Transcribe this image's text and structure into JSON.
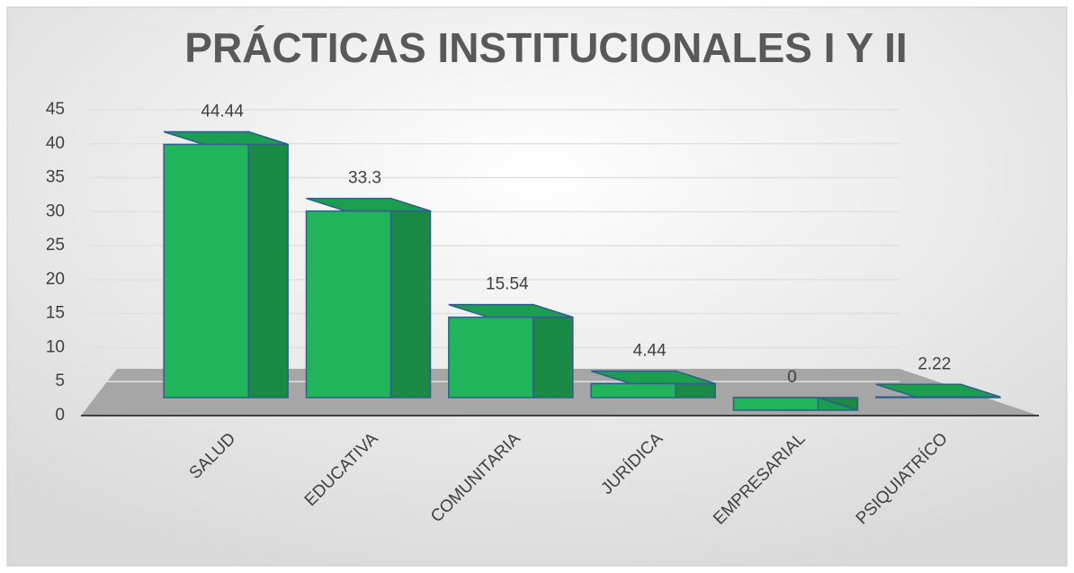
{
  "chart_data": {
    "type": "bar",
    "title": "PRÁCTICAS INSTITUCIONALES I Y II",
    "categories": [
      "SALUD",
      "EDUCATIVA",
      "COMUNITARIA",
      "JURÍDICA",
      "EMPRESARIAL",
      "PSIQUIATRÍCO"
    ],
    "values": [
      44.44,
      33.3,
      15.54,
      4.44,
      0,
      2.22
    ],
    "color": "#21b45a",
    "ylim": [
      0,
      45
    ],
    "yticks": [
      0,
      5,
      10,
      15,
      20,
      25,
      30,
      35,
      40,
      45
    ],
    "grid": true
  }
}
